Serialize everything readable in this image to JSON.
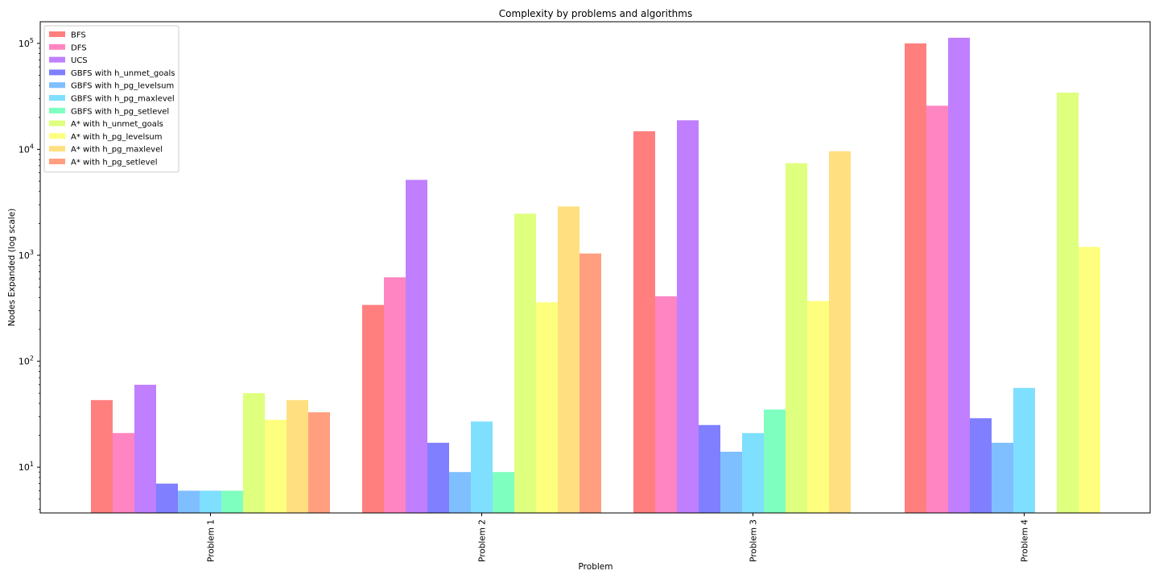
{
  "chart_data": {
    "type": "bar",
    "title": "Complexity by problems and algorithms",
    "xlabel": "Problem",
    "ylabel": "Nodes Expanded (log scale)",
    "yscale": "log",
    "ylim": [
      3.7,
      160000
    ],
    "y_ticks": [
      {
        "value": 10,
        "base": "10",
        "exp": "1"
      },
      {
        "value": 100,
        "base": "10",
        "exp": "2"
      },
      {
        "value": 1000,
        "base": "10",
        "exp": "3"
      },
      {
        "value": 10000,
        "base": "10",
        "exp": "4"
      },
      {
        "value": 100000,
        "base": "10",
        "exp": "5"
      }
    ],
    "categories": [
      "Problem 1",
      "Problem 2",
      "Problem 3",
      "Problem 4"
    ],
    "legend_position": "top-left",
    "grid": false,
    "series": [
      {
        "name": "BFS",
        "color": "#ff7f7f",
        "values": [
          43,
          340,
          14800,
          100000
        ]
      },
      {
        "name": "DFS",
        "color": "#ff85c2",
        "values": [
          21,
          620,
          410,
          25800
        ]
      },
      {
        "name": "UCS",
        "color": "#bf7fff",
        "values": [
          60,
          5150,
          18800,
          113000
        ]
      },
      {
        "name": "GBFS with h_unmet_goals",
        "color": "#7f7fff",
        "values": [
          7,
          17,
          25,
          29
        ]
      },
      {
        "name": "GBFS with h_pg_levelsum",
        "color": "#7fbfff",
        "values": [
          6,
          9,
          14,
          17
        ]
      },
      {
        "name": "GBFS with h_pg_maxlevel",
        "color": "#7fdfff",
        "values": [
          6,
          27,
          21,
          56
        ]
      },
      {
        "name": "GBFS with h_pg_setlevel",
        "color": "#7fffbf",
        "values": [
          6,
          9,
          35,
          null
        ]
      },
      {
        "name": "A* with h_unmet_goals",
        "color": "#dfff7f",
        "values": [
          50,
          2470,
          7400,
          34300
        ]
      },
      {
        "name": "A* with h_pg_levelsum",
        "color": "#ffff7f",
        "values": [
          28,
          360,
          370,
          1200
        ]
      },
      {
        "name": "A* with h_pg_maxlevel",
        "color": "#ffdf7f",
        "values": [
          43,
          2890,
          9600,
          null
        ]
      },
      {
        "name": "A* with h_pg_setlevel",
        "color": "#ff9f7f",
        "values": [
          33,
          1040,
          null,
          null
        ]
      }
    ]
  }
}
